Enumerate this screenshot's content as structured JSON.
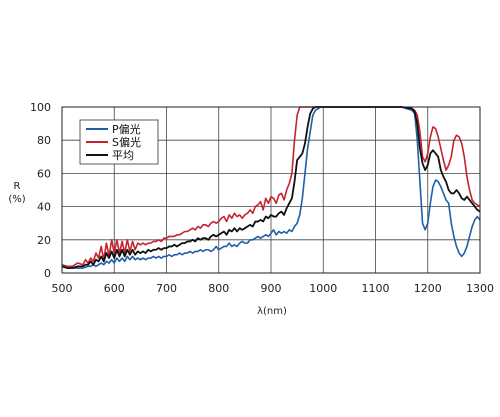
{
  "chart_data": {
    "type": "line",
    "title": "",
    "xlabel": "λ(nm)",
    "ylabel_line1": "R",
    "ylabel_line2": "(%)",
    "xlim": [
      500,
      1300
    ],
    "ylim": [
      0,
      100
    ],
    "xticks": [
      500,
      600,
      700,
      800,
      900,
      1000,
      1100,
      1200,
      1300
    ],
    "yticks": [
      0,
      20,
      40,
      60,
      80,
      100
    ],
    "grid": true,
    "legend_position": "top-left",
    "series": [
      {
        "name": "P偏光",
        "color": "#1f5fa8",
        "x": [
          500,
          510,
          520,
          530,
          540,
          550,
          555,
          560,
          565,
          570,
          575,
          580,
          585,
          590,
          595,
          600,
          605,
          610,
          615,
          620,
          625,
          630,
          635,
          640,
          645,
          650,
          655,
          660,
          665,
          670,
          675,
          680,
          685,
          690,
          695,
          700,
          705,
          710,
          715,
          720,
          725,
          730,
          735,
          740,
          745,
          750,
          755,
          760,
          765,
          770,
          775,
          780,
          785,
          790,
          795,
          800,
          805,
          810,
          815,
          820,
          825,
          830,
          835,
          840,
          845,
          850,
          855,
          860,
          865,
          870,
          875,
          880,
          885,
          890,
          895,
          900,
          905,
          910,
          915,
          920,
          925,
          930,
          935,
          940,
          945,
          950,
          955,
          960,
          965,
          970,
          975,
          980,
          985,
          990,
          995,
          1000,
          1050,
          1100,
          1150,
          1170,
          1175,
          1180,
          1185,
          1190,
          1195,
          1200,
          1205,
          1210,
          1215,
          1220,
          1225,
          1230,
          1235,
          1240,
          1245,
          1250,
          1255,
          1260,
          1265,
          1270,
          1275,
          1280,
          1285,
          1290,
          1295,
          1300
        ],
        "y": [
          4,
          3,
          3,
          3,
          3,
          4,
          4,
          5,
          4,
          5,
          6,
          5,
          7,
          6,
          8,
          6,
          9,
          7,
          9,
          7,
          10,
          8,
          10,
          8,
          9,
          8,
          9,
          8,
          9,
          9,
          10,
          9,
          10,
          9,
          10,
          10,
          11,
          10,
          11,
          11,
          12,
          11,
          12,
          12,
          13,
          12,
          13,
          13,
          14,
          13,
          14,
          14,
          13,
          14,
          16,
          14,
          15,
          16,
          16,
          18,
          16,
          17,
          16,
          18,
          19,
          18,
          18,
          20,
          20,
          21,
          22,
          21,
          22,
          23,
          22,
          24,
          26,
          23,
          25,
          24,
          25,
          24,
          26,
          25,
          28,
          30,
          35,
          45,
          60,
          75,
          85,
          95,
          98,
          99,
          100,
          100,
          100,
          100,
          100,
          98,
          96,
          80,
          55,
          30,
          26,
          30,
          42,
          52,
          56,
          55,
          52,
          48,
          44,
          42,
          30,
          22,
          16,
          12,
          10,
          12,
          16,
          22,
          28,
          32,
          34,
          32
        ],
        "lw": 1.6
      },
      {
        "name": "S偏光",
        "color": "#c8232c",
        "x": [
          500,
          510,
          520,
          530,
          540,
          545,
          550,
          555,
          560,
          565,
          570,
          575,
          580,
          585,
          590,
          595,
          600,
          605,
          610,
          615,
          620,
          625,
          630,
          635,
          640,
          645,
          650,
          655,
          660,
          665,
          670,
          675,
          680,
          685,
          690,
          695,
          700,
          705,
          710,
          715,
          720,
          725,
          730,
          735,
          740,
          745,
          750,
          755,
          760,
          765,
          770,
          775,
          780,
          785,
          790,
          795,
          800,
          805,
          810,
          815,
          820,
          825,
          830,
          835,
          840,
          845,
          850,
          855,
          860,
          865,
          870,
          875,
          880,
          885,
          890,
          895,
          900,
          905,
          910,
          915,
          920,
          925,
          930,
          935,
          940,
          945,
          950,
          955,
          960,
          965,
          1000,
          1050,
          1100,
          1150,
          1170,
          1175,
          1180,
          1185,
          1190,
          1195,
          1200,
          1205,
          1210,
          1215,
          1220,
          1225,
          1230,
          1235,
          1240,
          1245,
          1250,
          1255,
          1260,
          1265,
          1270,
          1275,
          1280,
          1285,
          1290,
          1295,
          1300
        ],
        "y": [
          5,
          4,
          4,
          6,
          5,
          8,
          6,
          9,
          7,
          12,
          9,
          16,
          8,
          18,
          10,
          20,
          12,
          20,
          12,
          19,
          12,
          20,
          13,
          19,
          14,
          18,
          17,
          18,
          17,
          18,
          18,
          19,
          19,
          20,
          19,
          21,
          21,
          22,
          22,
          22,
          23,
          23,
          24,
          25,
          25,
          26,
          27,
          26,
          28,
          27,
          29,
          29,
          28,
          30,
          31,
          30,
          31,
          33,
          34,
          31,
          35,
          33,
          36,
          34,
          35,
          33,
          35,
          36,
          38,
          36,
          40,
          41,
          43,
          38,
          45,
          42,
          46,
          45,
          42,
          47,
          48,
          44,
          50,
          54,
          60,
          80,
          95,
          100,
          100,
          100,
          100,
          100,
          100,
          100,
          99,
          98,
          95,
          85,
          70,
          67,
          72,
          82,
          88,
          87,
          82,
          75,
          68,
          62,
          65,
          70,
          80,
          83,
          82,
          78,
          70,
          58,
          50,
          44,
          42,
          41,
          40
        ],
        "lw": 1.6
      },
      {
        "name": "平均",
        "color": "#111111",
        "x": [
          500,
          510,
          520,
          530,
          540,
          545,
          550,
          555,
          560,
          565,
          570,
          575,
          580,
          585,
          590,
          595,
          600,
          605,
          610,
          615,
          620,
          625,
          630,
          635,
          640,
          645,
          650,
          655,
          660,
          665,
          670,
          675,
          680,
          685,
          690,
          695,
          700,
          705,
          710,
          715,
          720,
          725,
          730,
          735,
          740,
          745,
          750,
          755,
          760,
          765,
          770,
          775,
          780,
          785,
          790,
          795,
          800,
          805,
          810,
          815,
          820,
          825,
          830,
          835,
          840,
          845,
          850,
          855,
          860,
          865,
          870,
          875,
          880,
          885,
          890,
          895,
          900,
          905,
          910,
          915,
          920,
          925,
          930,
          935,
          940,
          945,
          950,
          955,
          960,
          965,
          970,
          975,
          980,
          985,
          990,
          995,
          1000,
          1050,
          1100,
          1150,
          1170,
          1175,
          1180,
          1185,
          1190,
          1195,
          1200,
          1205,
          1210,
          1215,
          1220,
          1225,
          1230,
          1235,
          1240,
          1245,
          1250,
          1255,
          1260,
          1265,
          1270,
          1275,
          1280,
          1285,
          1290,
          1295,
          1300
        ],
        "y": [
          4,
          3,
          3,
          4,
          4,
          5,
          5,
          7,
          5,
          8,
          7,
          10,
          7,
          12,
          9,
          13,
          9,
          14,
          10,
          14,
          10,
          14,
          11,
          14,
          11,
          13,
          12,
          13,
          12,
          14,
          13,
          14,
          14,
          15,
          14,
          15,
          15,
          16,
          16,
          17,
          16,
          17,
          18,
          18,
          19,
          19,
          20,
          19,
          21,
          20,
          21,
          21,
          20,
          22,
          23,
          22,
          23,
          24,
          25,
          23,
          26,
          25,
          27,
          25,
          27,
          26,
          27,
          28,
          29,
          28,
          31,
          31,
          32,
          31,
          34,
          33,
          35,
          34,
          34,
          36,
          37,
          35,
          39,
          42,
          45,
          55,
          68,
          70,
          72,
          78,
          88,
          96,
          99,
          100,
          100,
          100,
          100,
          100,
          100,
          100,
          99,
          97,
          90,
          75,
          66,
          62,
          65,
          72,
          74,
          72,
          70,
          62,
          58,
          55,
          50,
          48,
          48,
          50,
          48,
          45,
          44,
          46,
          44,
          42,
          40,
          38,
          37
        ],
        "lw": 1.8
      }
    ]
  }
}
